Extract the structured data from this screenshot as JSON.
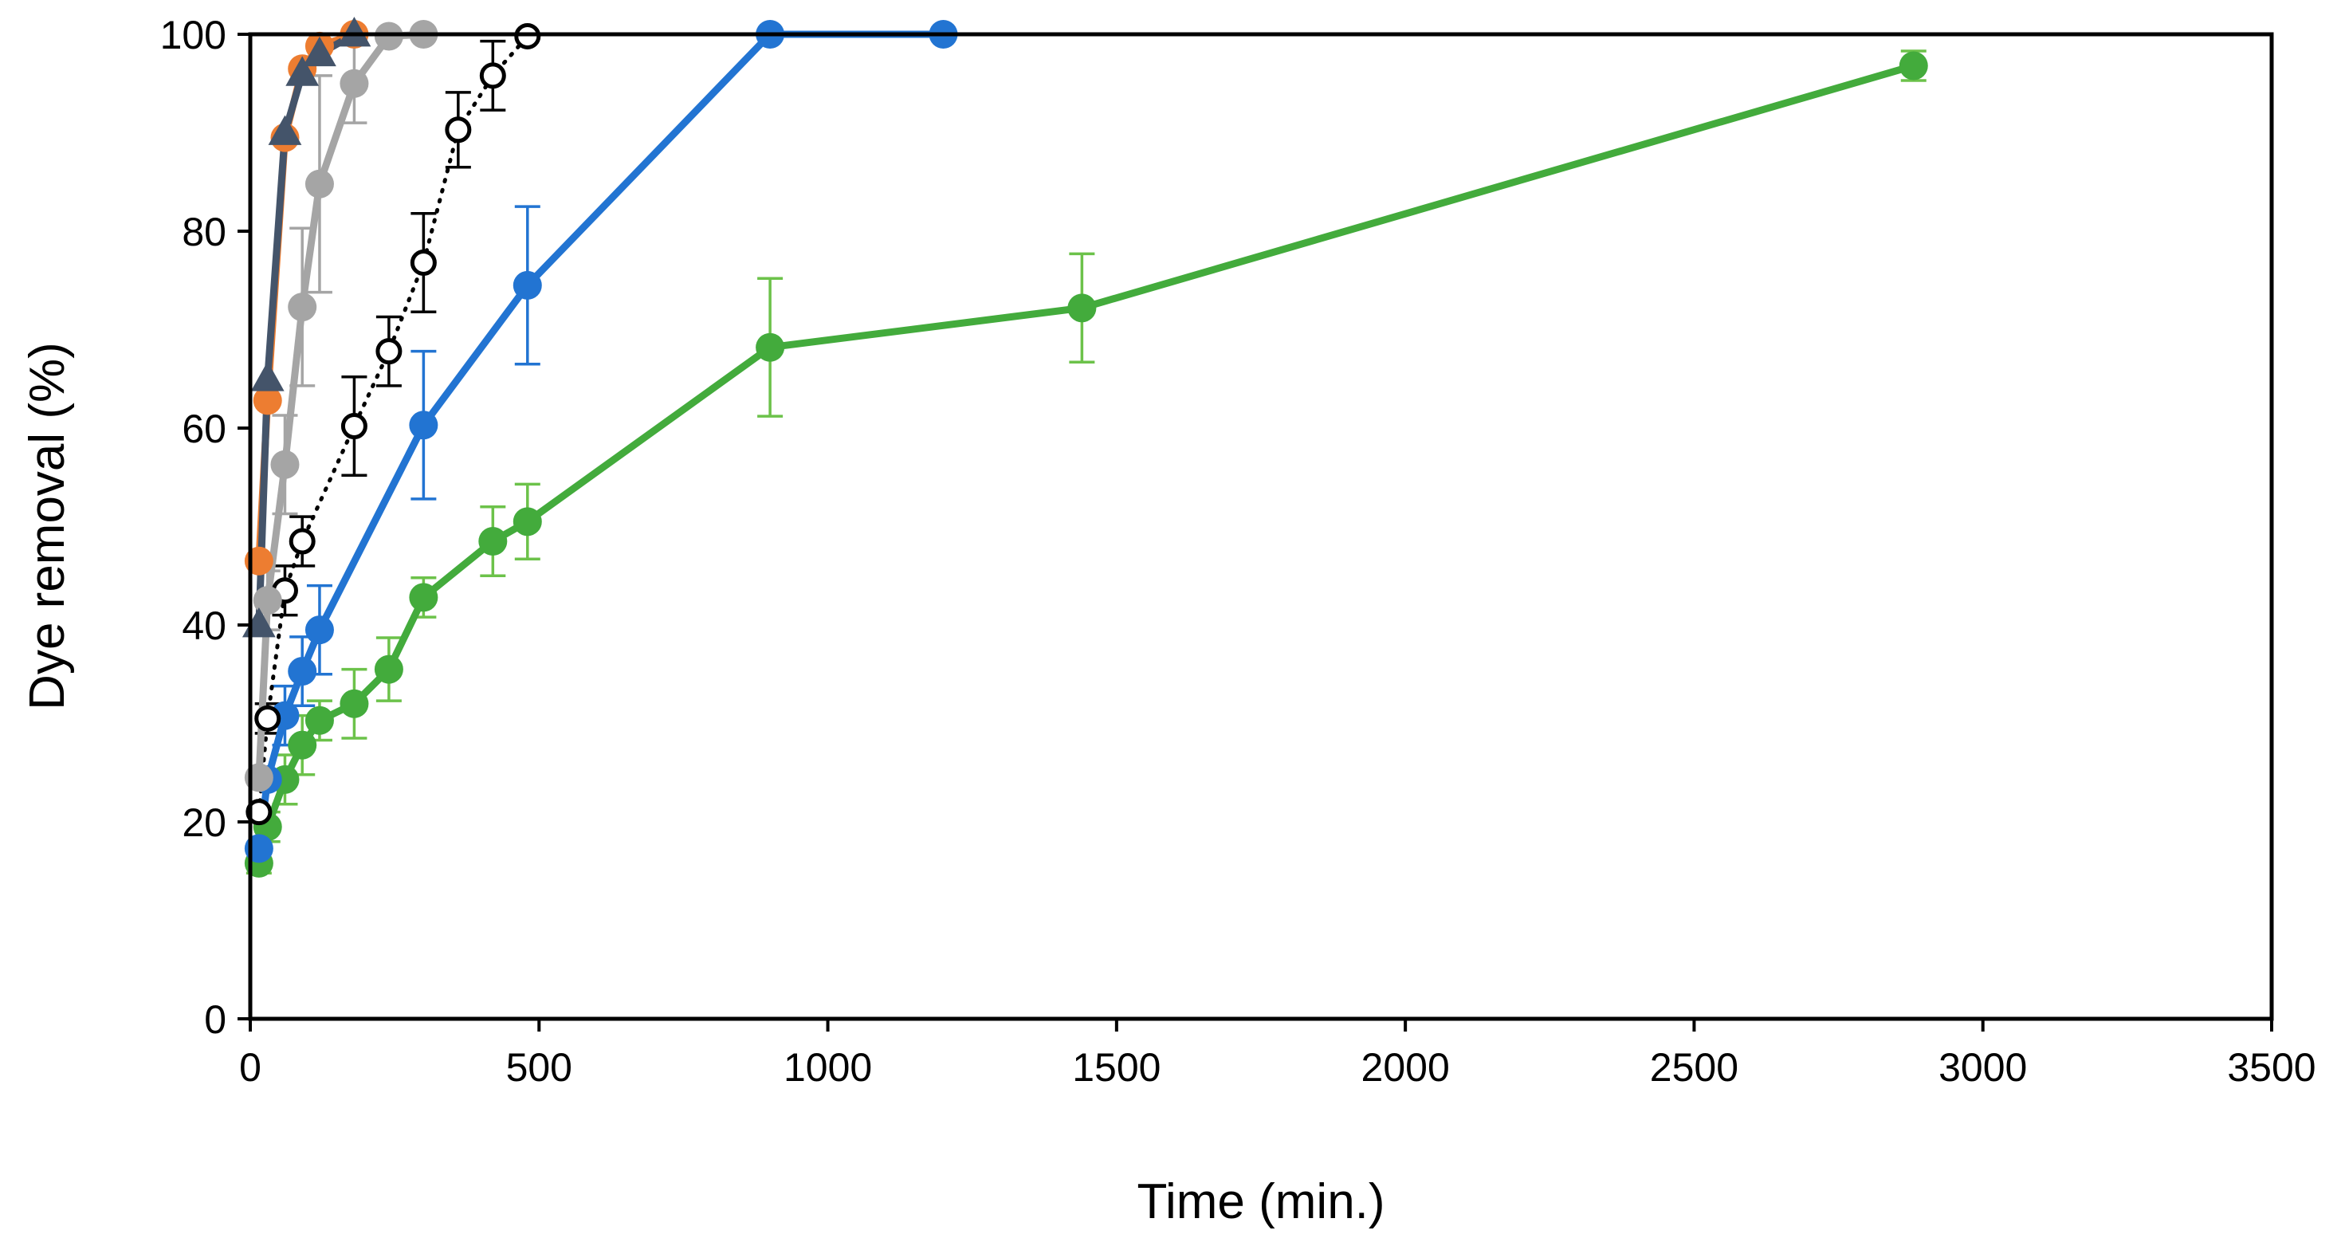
{
  "chart_data": {
    "type": "line",
    "title": "",
    "xlabel": "Time (min.)",
    "ylabel": "Dye removal (%)",
    "xlim": [
      0,
      3500
    ],
    "ylim": [
      0,
      100
    ],
    "xticks": [
      0,
      500,
      1000,
      1500,
      2000,
      2500,
      3000,
      3500
    ],
    "yticks": [
      0,
      20,
      40,
      60,
      80,
      100
    ],
    "x_tick_labels": [
      "0",
      "500",
      "1000",
      "1500",
      "2000",
      "2500",
      "3000",
      "3500"
    ],
    "y_tick_labels": [
      "0",
      "20",
      "40",
      "60",
      "80",
      "100"
    ],
    "grid": false,
    "legend": "none",
    "series": [
      {
        "name": "navy-triangles",
        "color": "#44546A",
        "marker": "triangle",
        "dashed": false,
        "x": [
          15,
          30,
          60,
          90,
          120,
          180
        ],
        "y": [
          40,
          65,
          90,
          96,
          98,
          100
        ],
        "err": [
          0,
          0,
          0,
          0,
          0,
          0
        ]
      },
      {
        "name": "orange-circles",
        "color": "#ED7D31",
        "marker": "circle",
        "dashed": false,
        "x": [
          15,
          30,
          60,
          90,
          120,
          180
        ],
        "y": [
          46.5,
          62.8,
          89.5,
          96.5,
          98.8,
          100
        ],
        "err": [
          0,
          0,
          0,
          0,
          0,
          0
        ]
      },
      {
        "name": "gray-circles",
        "color": "#A5A5A5",
        "marker": "circle",
        "dashed": false,
        "x": [
          15,
          30,
          60,
          90,
          120,
          180,
          240,
          300
        ],
        "y": [
          24.5,
          42.5,
          56.3,
          72.3,
          84.8,
          95,
          99.8,
          100
        ],
        "err": [
          0,
          3,
          5,
          8,
          11,
          4,
          0,
          0
        ]
      },
      {
        "name": "open-circles",
        "color": "#000000",
        "marker": "open-circle",
        "dashed": true,
        "x": [
          15,
          30,
          60,
          90,
          180,
          240,
          300,
          360,
          420,
          480
        ],
        "y": [
          21,
          30.5,
          43.5,
          48.5,
          60.2,
          67.8,
          76.8,
          90.3,
          95.8,
          99.8
        ],
        "err": [
          0,
          1.5,
          2.5,
          2.5,
          5,
          3.5,
          5,
          3.8,
          3.5,
          0
        ]
      },
      {
        "name": "blue-circles",
        "color": "#2274D2",
        "marker": "circle",
        "dashed": false,
        "x": [
          15,
          30,
          60,
          90,
          120,
          300,
          480,
          900,
          1200
        ],
        "y": [
          17.3,
          24.3,
          30.8,
          35.3,
          39.5,
          60.3,
          74.5,
          100,
          100
        ],
        "err": [
          0,
          0,
          3,
          3.5,
          4.5,
          7.5,
          8,
          0,
          0
        ]
      },
      {
        "name": "green-circles",
        "color": "#43AB3C",
        "marker": "circle",
        "dashed": false,
        "x": [
          15,
          30,
          60,
          90,
          120,
          180,
          240,
          300,
          420,
          480,
          900,
          1440,
          2880
        ],
        "y": [
          15.8,
          19.5,
          24.3,
          27.8,
          30.3,
          32,
          35.5,
          42.8,
          48.5,
          50.5,
          68.2,
          72.2,
          96.8
        ],
        "err": [
          1,
          1.5,
          2.5,
          3,
          2,
          3.5,
          3.2,
          2,
          3.5,
          3.8,
          7,
          5.5,
          1.5
        ]
      }
    ]
  }
}
